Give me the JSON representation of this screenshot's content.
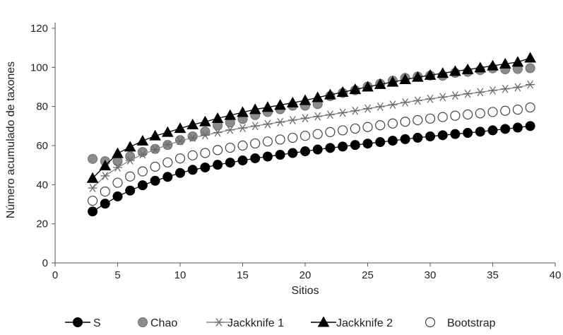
{
  "chart_data": {
    "type": "line",
    "title": "",
    "xlabel": "Sitios",
    "ylabel": "Número acumulado de taxones",
    "xlim": [
      0,
      40
    ],
    "ylim": [
      0,
      120
    ],
    "xticks": [
      0,
      5,
      10,
      15,
      20,
      25,
      30,
      35,
      40
    ],
    "yticks": [
      0,
      20,
      40,
      60,
      80,
      100,
      120
    ],
    "grid": false,
    "legend_position": "bottom",
    "x": [
      3,
      4,
      5,
      6,
      7,
      8,
      9,
      10,
      11,
      12,
      13,
      14,
      15,
      16,
      17,
      18,
      19,
      20,
      21,
      22,
      23,
      24,
      25,
      26,
      27,
      28,
      29,
      30,
      31,
      32,
      33,
      34,
      35,
      36,
      37,
      38
    ],
    "series": [
      {
        "name": "S",
        "marker": "filled-circle",
        "color": "#000000",
        "line": true,
        "values": [
          26.3,
          30.3,
          34,
          37,
          39.7,
          42,
          44,
          46,
          47.6,
          48.8,
          50.2,
          51.3,
          52.4,
          53.5,
          54.4,
          55.3,
          56.2,
          57.1,
          58,
          58.8,
          59.5,
          60.3,
          61,
          61.8,
          62.5,
          63.3,
          64,
          64.7,
          65.3,
          65.9,
          66.5,
          67.1,
          67.8,
          68.5,
          69.2,
          70
        ]
      },
      {
        "name": "Chao",
        "marker": "gray-circle",
        "color": "#8c8c8c",
        "line": false,
        "values": [
          53.2,
          52,
          52,
          54.5,
          56.7,
          58.3,
          60.3,
          62.8,
          64.7,
          67.2,
          70.3,
          71.8,
          73.6,
          75.6,
          77.2,
          78.6,
          80.4,
          80.4,
          81.2,
          85.3,
          86.9,
          88.3,
          90.2,
          91.6,
          93.2,
          94.6,
          95.3,
          95.8,
          95.7,
          97.2,
          97.7,
          98.6,
          99.5,
          99,
          99.2,
          99.6
        ]
      },
      {
        "name": "Jackknife 1",
        "marker": "asterisk",
        "color": "#7a7a7a",
        "line": true,
        "values": [
          38.3,
          44.5,
          48.8,
          52.4,
          55.5,
          58,
          60.4,
          62.4,
          64,
          65.3,
          66.7,
          68,
          69,
          70,
          71,
          72,
          73,
          74,
          74.9,
          75.8,
          76.8,
          77.8,
          78.9,
          79.9,
          80.9,
          82.1,
          83,
          83.9,
          84.8,
          85.6,
          86.5,
          87.3,
          88.2,
          89,
          89.8,
          91.2
        ]
      },
      {
        "name": "Jackknife 2",
        "marker": "filled-triangle",
        "color": "#000000",
        "line": true,
        "values": [
          43.3,
          49.7,
          56,
          59.3,
          62.4,
          65,
          66.8,
          68.8,
          70.7,
          72.2,
          73.9,
          75.5,
          77,
          78.5,
          79.6,
          80.7,
          81.9,
          83.1,
          84.6,
          86,
          87.3,
          88.7,
          90,
          91.3,
          92.5,
          93.8,
          95,
          96,
          97,
          98,
          98.9,
          99.8,
          100.8,
          101.8,
          102.7,
          104.8
        ]
      },
      {
        "name": "Bootstrap",
        "marker": "open-circle",
        "color": "#444444",
        "line": false,
        "values": [
          31.8,
          36.5,
          41,
          44.2,
          46.8,
          49.2,
          51.4,
          53.4,
          55,
          56.2,
          57.7,
          58.9,
          60,
          61.1,
          62.1,
          63.1,
          64,
          65,
          65.9,
          66.9,
          67.8,
          68.7,
          69.5,
          70.4,
          71.3,
          72.2,
          73,
          73.8,
          74.6,
          75.3,
          75.9,
          76.5,
          77.2,
          77.8,
          78.4,
          79.5
        ]
      }
    ]
  }
}
